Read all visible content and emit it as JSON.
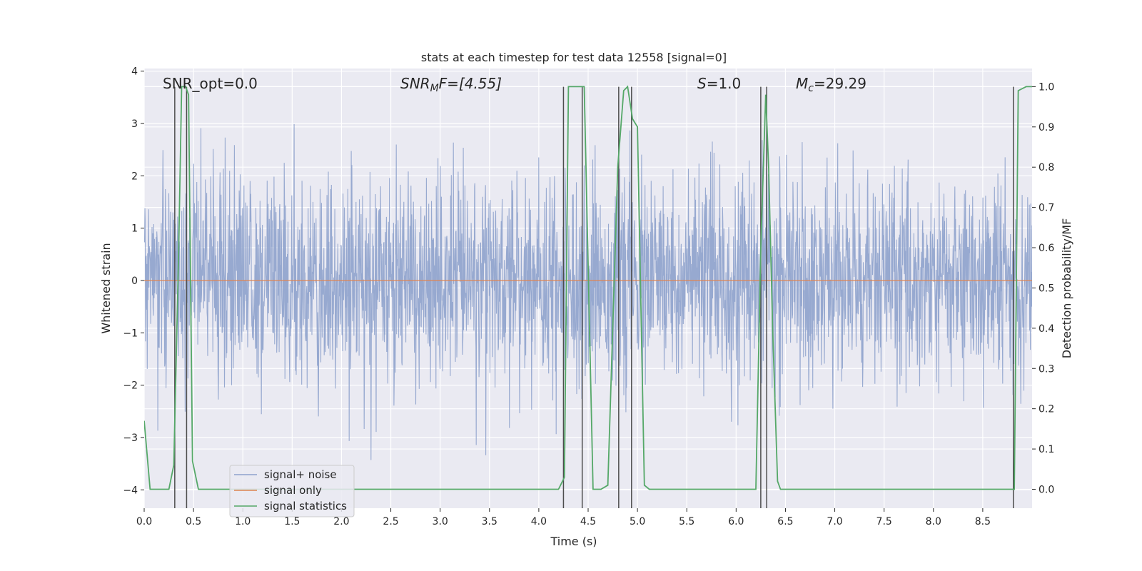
{
  "chart_data": {
    "type": "line",
    "title": "stats at each timestep for test data 12558 [signal=0]",
    "xlabel": "Time (s)",
    "ylabel_left": "Whitened strain",
    "ylabel_right": "Detection probability/MF",
    "xlim": [
      0.0,
      9.0
    ],
    "ylim_left": [
      -4.35,
      4.05
    ],
    "ylim_right": [
      -0.047,
      1.045
    ],
    "xticks": [
      "0.0",
      "0.5",
      "1.0",
      "1.5",
      "2.0",
      "2.5",
      "3.0",
      "3.5",
      "4.0",
      "4.5",
      "5.0",
      "5.5",
      "6.0",
      "6.5",
      "7.0",
      "7.5",
      "8.0",
      "8.5"
    ],
    "yticks_left": [
      "4",
      "3",
      "2",
      "1",
      "0",
      "−1",
      "−2",
      "−3",
      "−4"
    ],
    "yticks_right": [
      "1.0",
      "0.9",
      "0.8",
      "0.7",
      "0.6",
      "0.5",
      "0.4",
      "0.3",
      "0.2",
      "0.1",
      "0.0"
    ],
    "grid": true,
    "legend_position": "lower-left",
    "annotations": {
      "snr_opt": "SNR_opt=0.0",
      "snr_mf_base": "SNR",
      "snr_mf_sub": "M",
      "snr_mf_tail": "F=[4.55]",
      "s_base": "S",
      "s_tail": "=1.0",
      "mc_base": "M",
      "mc_sub": "c",
      "mc_tail": "=29.29"
    },
    "series": [
      {
        "name": "signal+ noise",
        "color": "#8ea2cc",
        "note_values": "whitened strain noise, amplitude roughly ±2 with peaks to ±4"
      },
      {
        "name": "signal only",
        "color": "#dd8452",
        "values_constant": 0.0
      },
      {
        "name": "signal statistics",
        "color": "#55a868",
        "x": [
          0.0,
          0.06,
          0.12,
          0.25,
          0.3,
          0.35,
          0.38,
          0.42,
          0.45,
          0.49,
          0.55,
          0.62,
          0.7,
          1.0,
          2.0,
          3.0,
          4.0,
          4.2,
          4.26,
          4.3,
          4.36,
          4.42,
          4.46,
          4.55,
          4.63,
          4.7,
          4.8,
          4.86,
          4.9,
          4.95,
          5.0,
          5.07,
          5.12,
          5.4,
          6.0,
          6.2,
          6.25,
          6.3,
          6.33,
          6.37,
          6.42,
          6.45,
          6.5,
          7.0,
          8.0,
          8.82,
          8.86,
          8.94,
          9.0
        ],
        "values": [
          0.17,
          0.0,
          0.0,
          0.0,
          0.06,
          0.6,
          1.0,
          1.0,
          0.98,
          0.07,
          0.0,
          0.0,
          0.0,
          0.0,
          0.0,
          0.0,
          0.0,
          0.0,
          0.03,
          1.0,
          1.0,
          1.0,
          1.0,
          0.0,
          0.0,
          0.01,
          0.8,
          0.99,
          1.0,
          0.92,
          0.9,
          0.01,
          0.0,
          0.0,
          0.0,
          0.0,
          0.6,
          0.98,
          0.8,
          0.4,
          0.02,
          0.0,
          0.0,
          0.0,
          0.0,
          0.0,
          0.99,
          1.0,
          1.0
        ]
      },
      {
        "name": "",
        "type": "vlines",
        "color": "#4d4d4d",
        "x": [
          0.31,
          0.43,
          4.25,
          4.44,
          4.81,
          4.94,
          6.25,
          6.31,
          8.81
        ],
        "ymax_left": 3.7
      }
    ]
  }
}
